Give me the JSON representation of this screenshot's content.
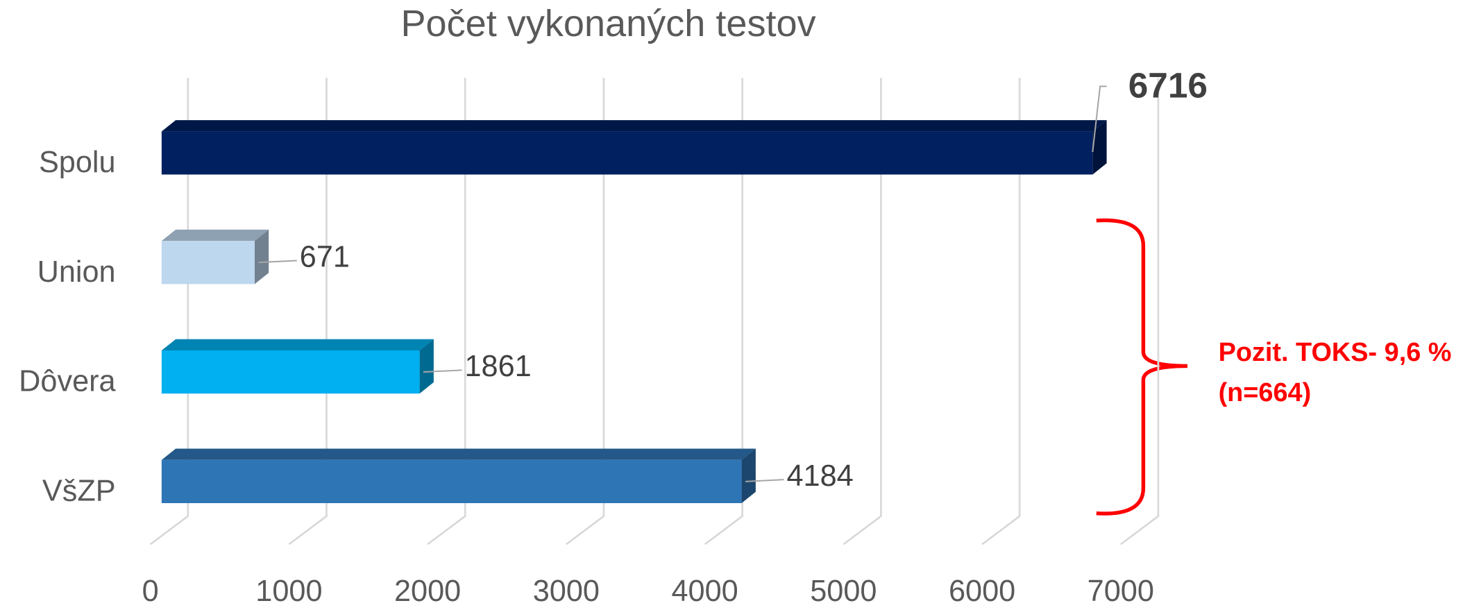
{
  "chart_data": {
    "type": "bar",
    "orientation": "horizontal",
    "title": "Počet vykonaných testov",
    "categories": [
      "Spolu",
      "Union",
      "Dôvera",
      "VšZP"
    ],
    "values": [
      6716,
      671,
      1861,
      4184
    ],
    "colors": [
      "#002060",
      "#bdd7ee",
      "#00b0f0",
      "#2e75b6"
    ],
    "xlim": [
      0,
      7000
    ],
    "xticks": [
      0,
      1000,
      2000,
      3000,
      4000,
      5000,
      6000,
      7000
    ],
    "grid": true,
    "annotation": [
      "Pozit. TOKS- 9,6 %",
      "(n=664)"
    ]
  }
}
